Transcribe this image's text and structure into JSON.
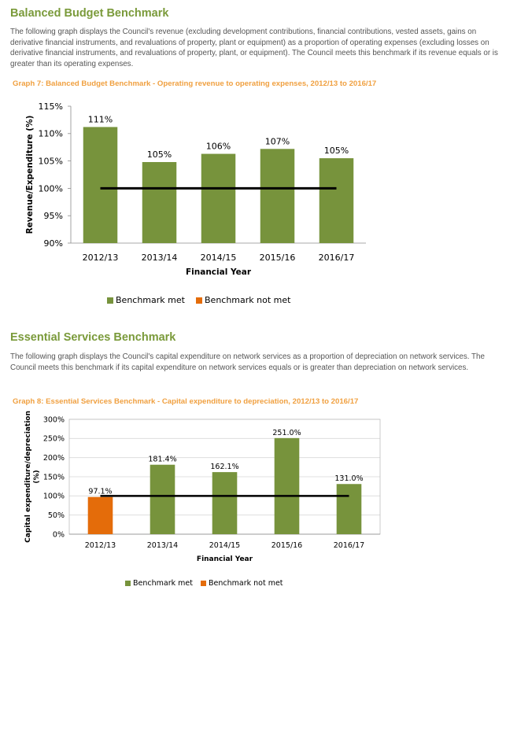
{
  "section1": {
    "title": "Balanced Budget Benchmark",
    "description": "The following graph displays the Council's revenue (excluding development contributions, financial contributions, vested assets, gains on derivative financial instruments, and revaluations of property, plant or equipment) as a proportion of operating expenses (excluding losses on derivative financial instruments, and revaluations of property, plant, or equipment). The Council meets this benchmark if its revenue equals or is greater than its operating expenses.",
    "graph_title": "Graph 7: Balanced Budget Benchmark - Operating revenue to operating expenses, 2012/13 to 2016/17"
  },
  "section2": {
    "title": "Essential Services Benchmark",
    "description": "The following graph displays the Council's capital expenditure on network services as a proportion of depreciation on network services. The Council meets this benchmark if its capital expenditure on network services equals or is greater than depreciation on network services.",
    "graph_title": "Graph 8: Essential Services Benchmark - Capital expenditure to depreciation, 2012/13 to 2016/17"
  },
  "colors": {
    "met": "#77933c",
    "not_met": "#e46c0a",
    "benchmark_line": "#000000"
  },
  "chart_data": [
    {
      "type": "bar",
      "title": "Graph 7: Balanced Budget Benchmark - Operating revenue to operating expenses, 2012/13 to 2016/17",
      "xlabel": "Financial  Year",
      "ylabel": "Revenue/Expenditure (%)",
      "categories": [
        "2012/13",
        "2013/14",
        "2014/15",
        "2015/16",
        "2016/17"
      ],
      "values": [
        111.2,
        104.8,
        106.3,
        107.2,
        105.5
      ],
      "data_labels": [
        "111%",
        "105%",
        "106%",
        "107%",
        "105%"
      ],
      "status": [
        "met",
        "met",
        "met",
        "met",
        "met"
      ],
      "benchmark": 100,
      "ylim": [
        90,
        115
      ],
      "yticks": [
        90,
        95,
        100,
        105,
        110,
        115
      ],
      "ytick_labels": [
        "90%",
        "95%",
        "100%",
        "105%",
        "110%",
        "115%"
      ],
      "grid": false,
      "legend": {
        "position": "bottom",
        "items": [
          "Benchmark met",
          "Benchmark not met"
        ]
      }
    },
    {
      "type": "bar",
      "title": "Graph 8: Essential Services Benchmark - Capital expenditure to depreciation, 2012/13 to 2016/17",
      "xlabel": "Financial  Year",
      "ylabel_lines": [
        "Capital expenditure/depreciation",
        "(%)"
      ],
      "categories": [
        "2012/13",
        "2013/14",
        "2014/15",
        "2015/16",
        "2016/17"
      ],
      "values": [
        97.1,
        181.4,
        162.1,
        251.0,
        131.0
      ],
      "data_labels": [
        "97.1%",
        "181.4%",
        "162.1%",
        "251.0%",
        "131.0%"
      ],
      "status": [
        "not_met",
        "met",
        "met",
        "met",
        "met"
      ],
      "benchmark": 100,
      "ylim": [
        0,
        300
      ],
      "yticks": [
        0,
        50,
        100,
        150,
        200,
        250,
        300
      ],
      "ytick_labels": [
        "0%",
        "50%",
        "100%",
        "150%",
        "200%",
        "250%",
        "300%"
      ],
      "grid": true,
      "legend": {
        "position": "bottom",
        "items": [
          "Benchmark met",
          "Benchmark not met"
        ]
      }
    }
  ]
}
